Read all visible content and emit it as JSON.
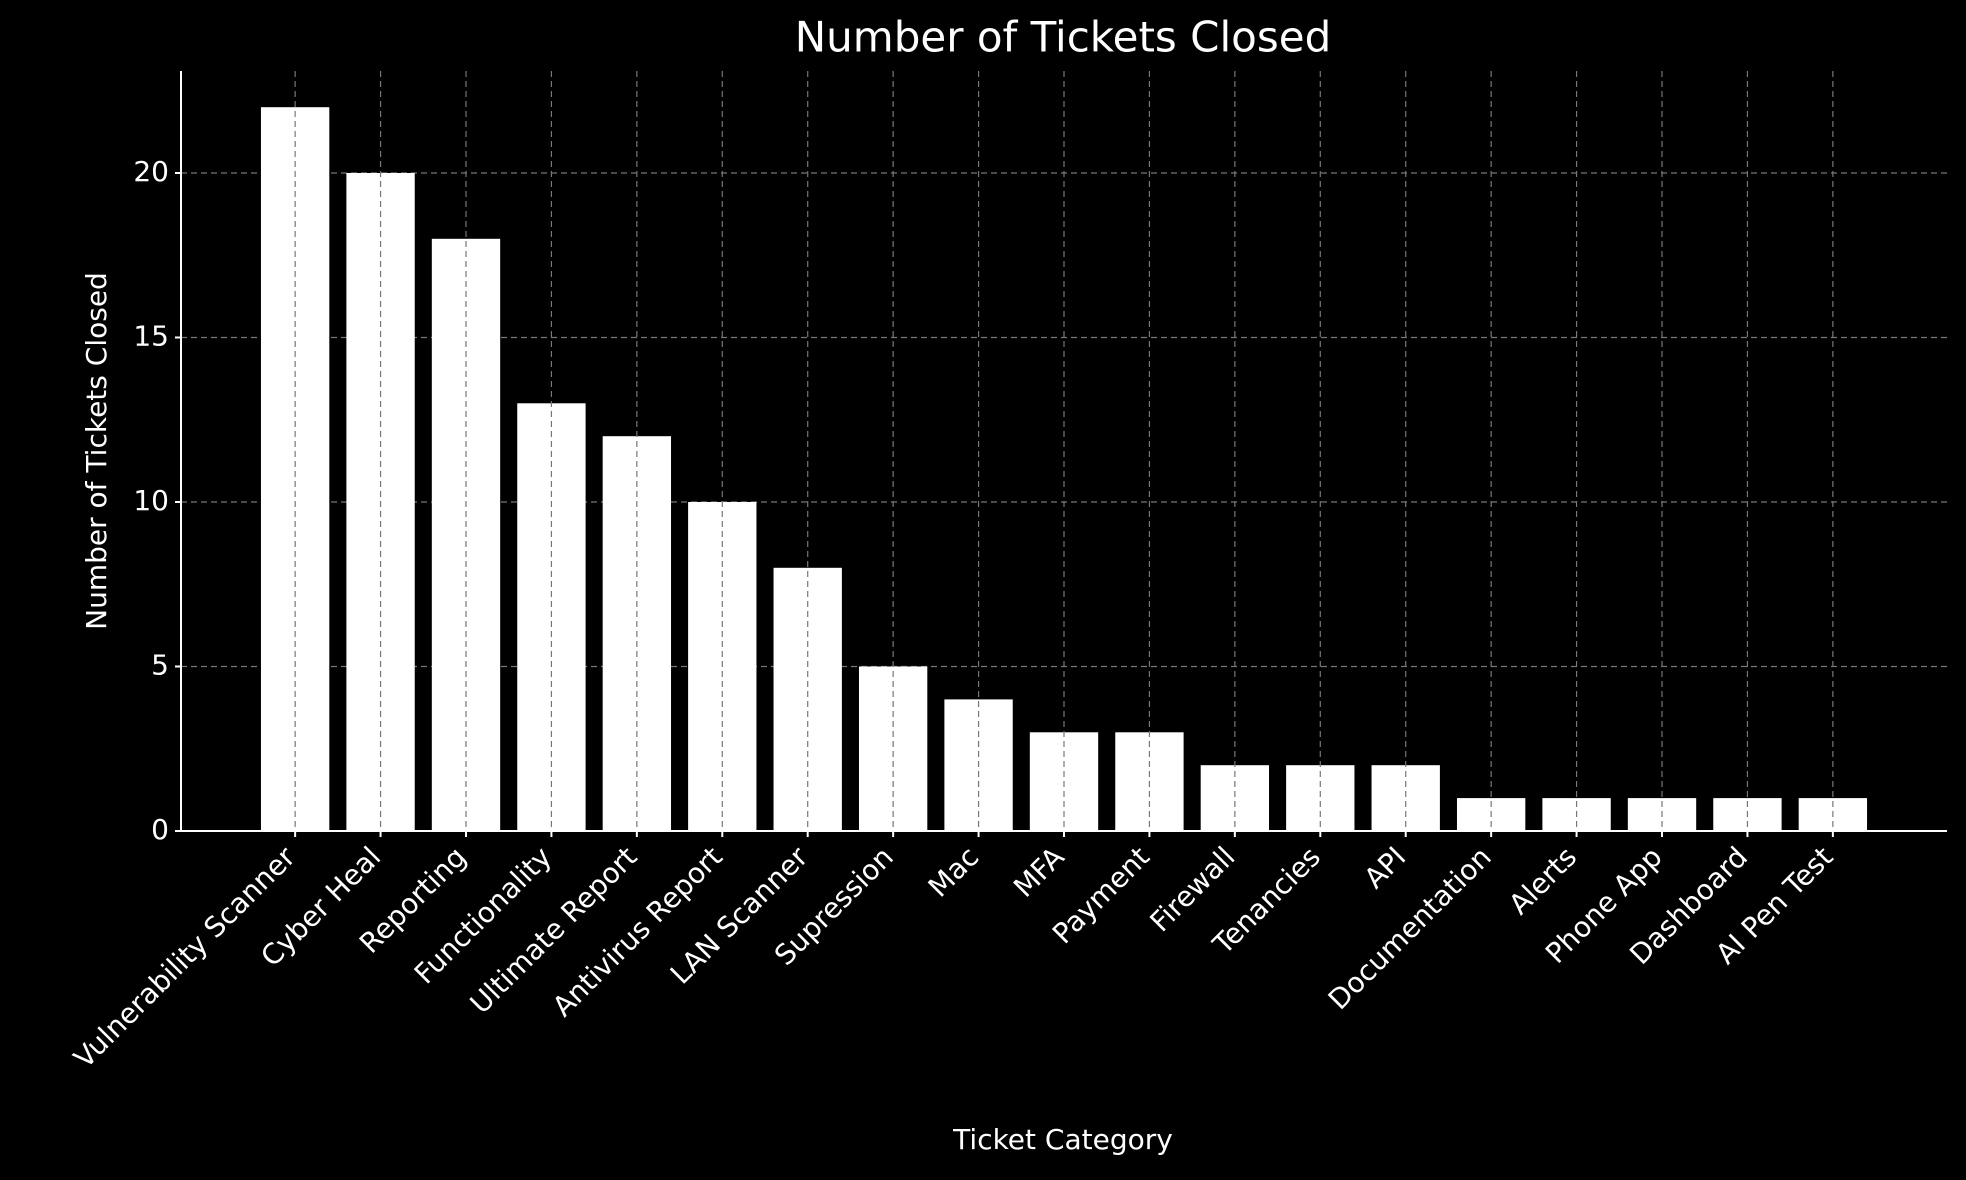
{
  "chart_data": {
    "type": "bar",
    "title": "Number of Tickets Closed",
    "x_label": "Ticket Category",
    "y_label": "Number of Tickets Closed",
    "categories": [
      "Vulnerability Scanner",
      "Cyber Heal",
      "Reporting",
      "Functionality",
      "Ultimate Report",
      "Antivirus Report",
      "LAN Scanner",
      "Supression",
      "Mac",
      "MFA",
      "Payment",
      "Firewall",
      "Tenancies",
      "API",
      "Documentation",
      "Alerts",
      "Phone App",
      "Dashboard",
      "AI Pen Test"
    ],
    "values": [
      22,
      20,
      18,
      13,
      12,
      10,
      8,
      5,
      4,
      3,
      3,
      2,
      2,
      2,
      1,
      1,
      1,
      1,
      1
    ],
    "color": "#ffffff",
    "ylim": [
      0,
      23.1
    ],
    "yticks": [
      0,
      5,
      10,
      15,
      20
    ],
    "grid": true
  }
}
